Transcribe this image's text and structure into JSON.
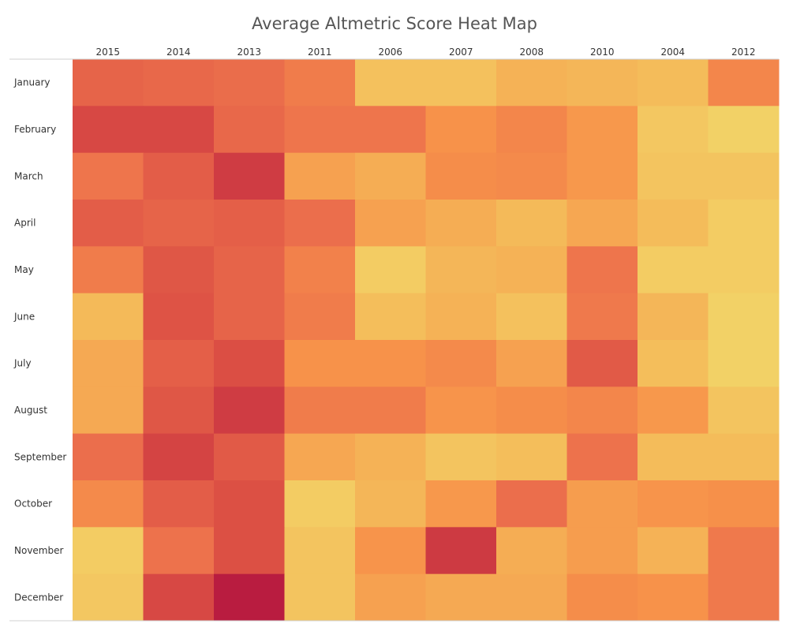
{
  "chart_data": {
    "type": "heatmap",
    "title": "Average Altmetric Score Heat Map",
    "columns": [
      "2015",
      "2014",
      "2013",
      "2011",
      "2006",
      "2007",
      "2008",
      "2010",
      "2004",
      "2012"
    ],
    "rows": [
      "January",
      "February",
      "March",
      "April",
      "May",
      "June",
      "July",
      "August",
      "September",
      "October",
      "November",
      "December"
    ],
    "values": [
      [
        0.62,
        0.6,
        0.57,
        0.48,
        0.12,
        0.12,
        0.2,
        0.18,
        0.15,
        0.42
      ],
      [
        0.78,
        0.78,
        0.6,
        0.52,
        0.52,
        0.35,
        0.42,
        0.32,
        0.08,
        0.02
      ],
      [
        0.52,
        0.66,
        0.84,
        0.28,
        0.22,
        0.38,
        0.4,
        0.32,
        0.1,
        0.1
      ],
      [
        0.66,
        0.62,
        0.65,
        0.56,
        0.28,
        0.22,
        0.16,
        0.25,
        0.15,
        0.05
      ],
      [
        0.48,
        0.7,
        0.62,
        0.45,
        0.05,
        0.18,
        0.2,
        0.52,
        0.05,
        0.05
      ],
      [
        0.16,
        0.72,
        0.62,
        0.48,
        0.14,
        0.2,
        0.12,
        0.5,
        0.18,
        0.02
      ],
      [
        0.24,
        0.65,
        0.75,
        0.35,
        0.35,
        0.4,
        0.28,
        0.68,
        0.14,
        0.02
      ],
      [
        0.24,
        0.7,
        0.84,
        0.48,
        0.48,
        0.34,
        0.38,
        0.42,
        0.32,
        0.1
      ],
      [
        0.56,
        0.8,
        0.68,
        0.25,
        0.2,
        0.1,
        0.14,
        0.54,
        0.15,
        0.15
      ],
      [
        0.4,
        0.66,
        0.74,
        0.05,
        0.18,
        0.32,
        0.56,
        0.3,
        0.34,
        0.36
      ],
      [
        0.05,
        0.54,
        0.74,
        0.1,
        0.34,
        0.85,
        0.22,
        0.3,
        0.2,
        0.5
      ],
      [
        0.08,
        0.78,
        1.0,
        0.1,
        0.28,
        0.24,
        0.24,
        0.38,
        0.35,
        0.5
      ]
    ],
    "value_scale": "relative (0 = lowest, 1 = highest)",
    "legend": "none",
    "grid": false
  }
}
